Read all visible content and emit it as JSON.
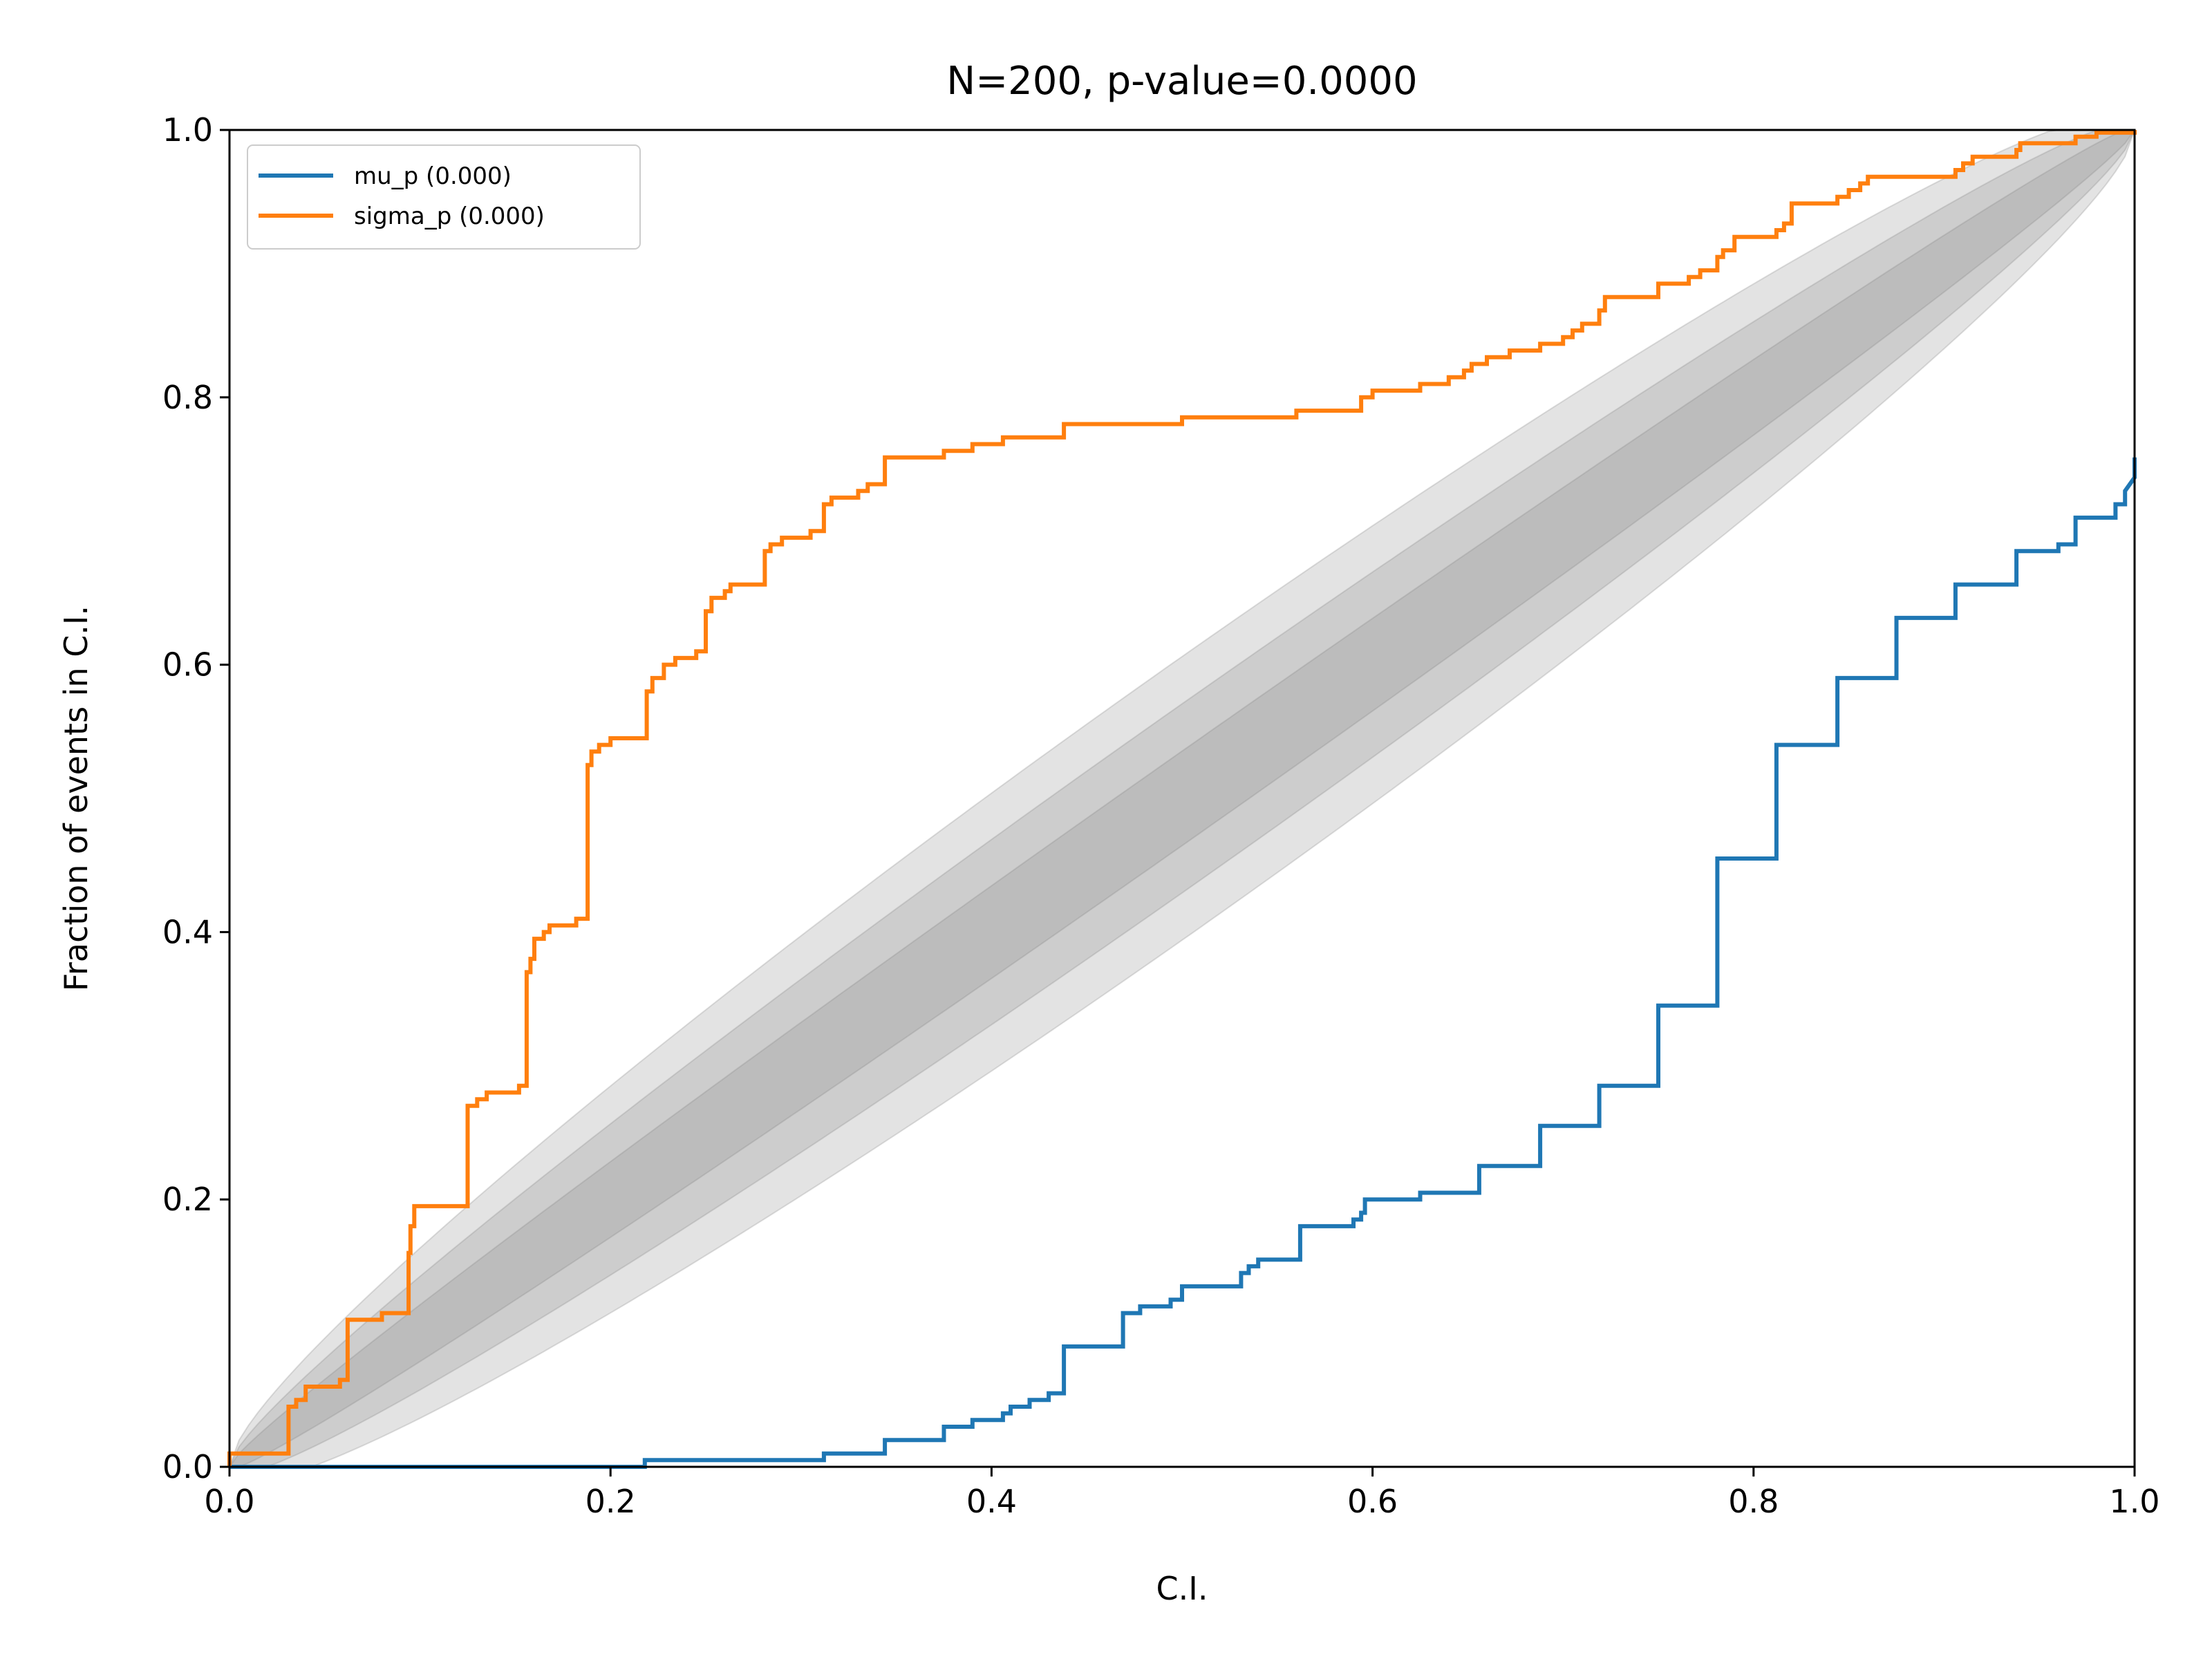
{
  "chart_data": {
    "type": "line",
    "title": "N=200, p-value=0.0000",
    "xlabel": "C.I.",
    "ylabel": "Fraction of events in C.I.",
    "xlim": [
      0.0,
      1.0
    ],
    "ylim": [
      0.0,
      1.0
    ],
    "x_ticks": [
      "0.0",
      "0.2",
      "0.4",
      "0.6",
      "0.8",
      "1.0"
    ],
    "y_ticks": [
      "0.0",
      "0.2",
      "0.4",
      "0.6",
      "0.8",
      "1.0"
    ],
    "grid": false,
    "legend_position": "top-left",
    "confidence_bands": {
      "n": 200,
      "z_levels": [
        3.0,
        2.0,
        1.0
      ],
      "color": "#808080"
    },
    "series": [
      {
        "name": "mu_p (0.000)",
        "color": "#1f77b4",
        "step": true,
        "points": [
          [
            0.0,
            0.0
          ],
          [
            0.218,
            0.0
          ],
          [
            0.218,
            0.005
          ],
          [
            0.312,
            0.005
          ],
          [
            0.312,
            0.01
          ],
          [
            0.344,
            0.01
          ],
          [
            0.344,
            0.02
          ],
          [
            0.375,
            0.02
          ],
          [
            0.375,
            0.03
          ],
          [
            0.39,
            0.03
          ],
          [
            0.39,
            0.035
          ],
          [
            0.406,
            0.035
          ],
          [
            0.406,
            0.04
          ],
          [
            0.41,
            0.04
          ],
          [
            0.41,
            0.045
          ],
          [
            0.42,
            0.045
          ],
          [
            0.42,
            0.05
          ],
          [
            0.43,
            0.05
          ],
          [
            0.43,
            0.055
          ],
          [
            0.438,
            0.055
          ],
          [
            0.438,
            0.09
          ],
          [
            0.469,
            0.09
          ],
          [
            0.469,
            0.115
          ],
          [
            0.478,
            0.115
          ],
          [
            0.478,
            0.12
          ],
          [
            0.494,
            0.12
          ],
          [
            0.494,
            0.125
          ],
          [
            0.5,
            0.125
          ],
          [
            0.5,
            0.135
          ],
          [
            0.531,
            0.135
          ],
          [
            0.531,
            0.145
          ],
          [
            0.535,
            0.145
          ],
          [
            0.535,
            0.15
          ],
          [
            0.54,
            0.15
          ],
          [
            0.54,
            0.155
          ],
          [
            0.562,
            0.155
          ],
          [
            0.562,
            0.18
          ],
          [
            0.59,
            0.18
          ],
          [
            0.59,
            0.185
          ],
          [
            0.594,
            0.185
          ],
          [
            0.594,
            0.19
          ],
          [
            0.596,
            0.19
          ],
          [
            0.596,
            0.2
          ],
          [
            0.625,
            0.2
          ],
          [
            0.625,
            0.205
          ],
          [
            0.656,
            0.205
          ],
          [
            0.656,
            0.225
          ],
          [
            0.688,
            0.225
          ],
          [
            0.688,
            0.255
          ],
          [
            0.719,
            0.255
          ],
          [
            0.719,
            0.285
          ],
          [
            0.75,
            0.285
          ],
          [
            0.75,
            0.345
          ],
          [
            0.781,
            0.345
          ],
          [
            0.781,
            0.455
          ],
          [
            0.812,
            0.455
          ],
          [
            0.812,
            0.54
          ],
          [
            0.844,
            0.54
          ],
          [
            0.844,
            0.59
          ],
          [
            0.875,
            0.59
          ],
          [
            0.875,
            0.635
          ],
          [
            0.906,
            0.635
          ],
          [
            0.906,
            0.66
          ],
          [
            0.938,
            0.66
          ],
          [
            0.938,
            0.685
          ],
          [
            0.96,
            0.685
          ],
          [
            0.96,
            0.69
          ],
          [
            0.969,
            0.69
          ],
          [
            0.969,
            0.71
          ],
          [
            0.99,
            0.71
          ],
          [
            0.99,
            0.72
          ],
          [
            0.995,
            0.72
          ],
          [
            0.995,
            0.73
          ],
          [
            1.0,
            0.74
          ],
          [
            1.0,
            0.755
          ]
        ]
      },
      {
        "name": "sigma_p (0.000)",
        "color": "#ff7f0e",
        "step": true,
        "points": [
          [
            0.0,
            0.0
          ],
          [
            0.0,
            0.01
          ],
          [
            0.031,
            0.01
          ],
          [
            0.031,
            0.045
          ],
          [
            0.035,
            0.045
          ],
          [
            0.035,
            0.05
          ],
          [
            0.04,
            0.05
          ],
          [
            0.04,
            0.055
          ],
          [
            0.04,
            0.06
          ],
          [
            0.058,
            0.06
          ],
          [
            0.058,
            0.065
          ],
          [
            0.062,
            0.065
          ],
          [
            0.062,
            0.11
          ],
          [
            0.08,
            0.11
          ],
          [
            0.08,
            0.115
          ],
          [
            0.094,
            0.115
          ],
          [
            0.094,
            0.16
          ],
          [
            0.095,
            0.16
          ],
          [
            0.095,
            0.18
          ],
          [
            0.097,
            0.18
          ],
          [
            0.097,
            0.195
          ],
          [
            0.125,
            0.195
          ],
          [
            0.125,
            0.27
          ],
          [
            0.13,
            0.27
          ],
          [
            0.13,
            0.275
          ],
          [
            0.135,
            0.275
          ],
          [
            0.135,
            0.28
          ],
          [
            0.152,
            0.28
          ],
          [
            0.152,
            0.285
          ],
          [
            0.156,
            0.285
          ],
          [
            0.156,
            0.37
          ],
          [
            0.158,
            0.37
          ],
          [
            0.158,
            0.38
          ],
          [
            0.16,
            0.38
          ],
          [
            0.16,
            0.395
          ],
          [
            0.165,
            0.395
          ],
          [
            0.165,
            0.4
          ],
          [
            0.168,
            0.4
          ],
          [
            0.168,
            0.405
          ],
          [
            0.182,
            0.405
          ],
          [
            0.182,
            0.41
          ],
          [
            0.188,
            0.41
          ],
          [
            0.188,
            0.525
          ],
          [
            0.19,
            0.525
          ],
          [
            0.19,
            0.535
          ],
          [
            0.194,
            0.535
          ],
          [
            0.194,
            0.54
          ],
          [
            0.2,
            0.54
          ],
          [
            0.2,
            0.545
          ],
          [
            0.219,
            0.545
          ],
          [
            0.219,
            0.58
          ],
          [
            0.222,
            0.58
          ],
          [
            0.222,
            0.59
          ],
          [
            0.228,
            0.59
          ],
          [
            0.228,
            0.6
          ],
          [
            0.234,
            0.6
          ],
          [
            0.234,
            0.605
          ],
          [
            0.245,
            0.605
          ],
          [
            0.245,
            0.61
          ],
          [
            0.25,
            0.61
          ],
          [
            0.25,
            0.64
          ],
          [
            0.253,
            0.64
          ],
          [
            0.253,
            0.65
          ],
          [
            0.26,
            0.65
          ],
          [
            0.26,
            0.655
          ],
          [
            0.263,
            0.655
          ],
          [
            0.263,
            0.66
          ],
          [
            0.281,
            0.66
          ],
          [
            0.281,
            0.685
          ],
          [
            0.284,
            0.685
          ],
          [
            0.284,
            0.69
          ],
          [
            0.29,
            0.69
          ],
          [
            0.29,
            0.695
          ],
          [
            0.305,
            0.695
          ],
          [
            0.305,
            0.7
          ],
          [
            0.312,
            0.7
          ],
          [
            0.312,
            0.72
          ],
          [
            0.316,
            0.72
          ],
          [
            0.316,
            0.725
          ],
          [
            0.33,
            0.725
          ],
          [
            0.33,
            0.73
          ],
          [
            0.335,
            0.73
          ],
          [
            0.335,
            0.735
          ],
          [
            0.344,
            0.735
          ],
          [
            0.344,
            0.755
          ],
          [
            0.375,
            0.755
          ],
          [
            0.375,
            0.76
          ],
          [
            0.39,
            0.76
          ],
          [
            0.39,
            0.765
          ],
          [
            0.406,
            0.765
          ],
          [
            0.406,
            0.77
          ],
          [
            0.438,
            0.77
          ],
          [
            0.438,
            0.78
          ],
          [
            0.469,
            0.78
          ],
          [
            0.469,
            0.78
          ],
          [
            0.5,
            0.78
          ],
          [
            0.5,
            0.785
          ],
          [
            0.531,
            0.785
          ],
          [
            0.56,
            0.785
          ],
          [
            0.56,
            0.79
          ],
          [
            0.594,
            0.79
          ],
          [
            0.594,
            0.8
          ],
          [
            0.6,
            0.8
          ],
          [
            0.6,
            0.805
          ],
          [
            0.625,
            0.805
          ],
          [
            0.625,
            0.81
          ],
          [
            0.64,
            0.81
          ],
          [
            0.64,
            0.815
          ],
          [
            0.648,
            0.815
          ],
          [
            0.648,
            0.82
          ],
          [
            0.652,
            0.82
          ],
          [
            0.652,
            0.825
          ],
          [
            0.66,
            0.825
          ],
          [
            0.66,
            0.83
          ],
          [
            0.672,
            0.83
          ],
          [
            0.672,
            0.835
          ],
          [
            0.688,
            0.835
          ],
          [
            0.688,
            0.84
          ],
          [
            0.7,
            0.84
          ],
          [
            0.7,
            0.845
          ],
          [
            0.705,
            0.845
          ],
          [
            0.705,
            0.85
          ],
          [
            0.71,
            0.85
          ],
          [
            0.71,
            0.855
          ],
          [
            0.719,
            0.855
          ],
          [
            0.719,
            0.865
          ],
          [
            0.722,
            0.865
          ],
          [
            0.722,
            0.875
          ],
          [
            0.75,
            0.875
          ],
          [
            0.75,
            0.885
          ],
          [
            0.766,
            0.885
          ],
          [
            0.766,
            0.89
          ],
          [
            0.772,
            0.89
          ],
          [
            0.772,
            0.895
          ],
          [
            0.781,
            0.895
          ],
          [
            0.781,
            0.905
          ],
          [
            0.784,
            0.905
          ],
          [
            0.784,
            0.91
          ],
          [
            0.79,
            0.91
          ],
          [
            0.79,
            0.92
          ],
          [
            0.812,
            0.92
          ],
          [
            0.812,
            0.925
          ],
          [
            0.816,
            0.925
          ],
          [
            0.816,
            0.93
          ],
          [
            0.82,
            0.93
          ],
          [
            0.82,
            0.945
          ],
          [
            0.844,
            0.945
          ],
          [
            0.844,
            0.95
          ],
          [
            0.85,
            0.95
          ],
          [
            0.85,
            0.955
          ],
          [
            0.856,
            0.955
          ],
          [
            0.856,
            0.96
          ],
          [
            0.86,
            0.96
          ],
          [
            0.86,
            0.965
          ],
          [
            0.906,
            0.965
          ],
          [
            0.906,
            0.97
          ],
          [
            0.91,
            0.97
          ],
          [
            0.91,
            0.975
          ],
          [
            0.915,
            0.975
          ],
          [
            0.915,
            0.98
          ],
          [
            0.938,
            0.98
          ],
          [
            0.938,
            0.985
          ],
          [
            0.94,
            0.985
          ],
          [
            0.94,
            0.99
          ],
          [
            0.969,
            0.99
          ],
          [
            0.969,
            0.995
          ],
          [
            0.98,
            0.995
          ],
          [
            0.98,
            0.998
          ],
          [
            1.0,
            0.998
          ],
          [
            1.0,
            1.0
          ]
        ]
      }
    ]
  }
}
